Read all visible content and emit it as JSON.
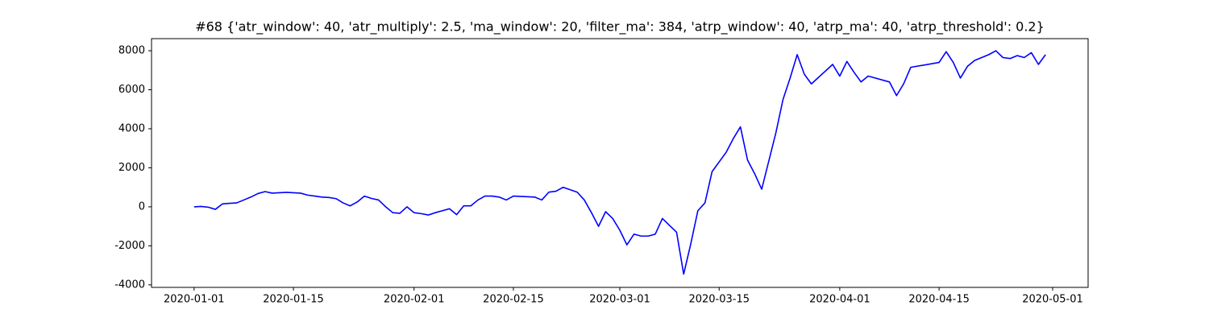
{
  "chart_data": {
    "type": "line",
    "title": "#68 {'atr_window': 40, 'atr_multiply': 2.5, 'ma_window': 20, 'filter_ma': 384, 'atrp_window': 40, 'atrp_ma': 40, 'atrp_threshold': 0.2}",
    "x": [
      "2020-01-01",
      "2020-01-02",
      "2020-01-03",
      "2020-01-04",
      "2020-01-05",
      "2020-01-06",
      "2020-01-07",
      "2020-01-08",
      "2020-01-09",
      "2020-01-10",
      "2020-01-11",
      "2020-01-12",
      "2020-01-13",
      "2020-01-14",
      "2020-01-15",
      "2020-01-16",
      "2020-01-17",
      "2020-01-18",
      "2020-01-19",
      "2020-01-20",
      "2020-01-21",
      "2020-01-22",
      "2020-01-23",
      "2020-01-24",
      "2020-01-25",
      "2020-01-26",
      "2020-01-27",
      "2020-01-28",
      "2020-01-29",
      "2020-01-30",
      "2020-01-31",
      "2020-02-01",
      "2020-02-02",
      "2020-02-03",
      "2020-02-04",
      "2020-02-05",
      "2020-02-06",
      "2020-02-07",
      "2020-02-08",
      "2020-02-09",
      "2020-02-10",
      "2020-02-11",
      "2020-02-12",
      "2020-02-13",
      "2020-02-14",
      "2020-02-15",
      "2020-02-18",
      "2020-02-19",
      "2020-02-20",
      "2020-02-21",
      "2020-02-22",
      "2020-02-24",
      "2020-02-25",
      "2020-02-26",
      "2020-02-27",
      "2020-02-28",
      "2020-02-29",
      "2020-03-01",
      "2020-03-02",
      "2020-03-03",
      "2020-03-04",
      "2020-03-05",
      "2020-03-06",
      "2020-03-07",
      "2020-03-09",
      "2020-03-10",
      "2020-03-11",
      "2020-03-12",
      "2020-03-13",
      "2020-03-14",
      "2020-03-16",
      "2020-03-17",
      "2020-03-18",
      "2020-03-19",
      "2020-03-20",
      "2020-03-21",
      "2020-03-23",
      "2020-03-24",
      "2020-03-25",
      "2020-03-26",
      "2020-03-27",
      "2020-03-28",
      "2020-03-31",
      "2020-04-01",
      "2020-04-02",
      "2020-04-03",
      "2020-04-04",
      "2020-04-05",
      "2020-04-08",
      "2020-04-09",
      "2020-04-10",
      "2020-04-11",
      "2020-04-15",
      "2020-04-16",
      "2020-04-17",
      "2020-04-18",
      "2020-04-19",
      "2020-04-20",
      "2020-04-22",
      "2020-04-23",
      "2020-04-24",
      "2020-04-25",
      "2020-04-26",
      "2020-04-27",
      "2020-04-28",
      "2020-04-29",
      "2020-04-30"
    ],
    "values": [
      0,
      20,
      -20,
      -130,
      150,
      180,
      200,
      350,
      500,
      680,
      780,
      700,
      720,
      740,
      720,
      700,
      600,
      550,
      500,
      480,
      420,
      200,
      50,
      250,
      550,
      430,
      350,
      0,
      -300,
      -330,
      0,
      -300,
      -350,
      -420,
      -300,
      -200,
      -100,
      -400,
      50,
      50,
      350,
      550,
      550,
      500,
      350,
      550,
      500,
      350,
      750,
      800,
      1000,
      750,
      350,
      -300,
      -1000,
      -250,
      -600,
      -1200,
      -1950,
      -1400,
      -1500,
      -1500,
      -1400,
      -600,
      -1300,
      -3450,
      -1900,
      -200,
      200,
      1800,
      2800,
      3500,
      4100,
      2400,
      1700,
      900,
      3800,
      5500,
      6600,
      7800,
      6800,
      6300,
      7300,
      6700,
      7450,
      6900,
      6400,
      6700,
      6400,
      5700,
      6300,
      7150,
      7400,
      7950,
      7400,
      6600,
      7200,
      7500,
      7800,
      8000,
      7650,
      7600,
      7750,
      7650,
      7900,
      7300,
      7800
    ],
    "color": "#0000ff",
    "xlim": [
      "2019-12-26",
      "2020-05-06"
    ],
    "xticks": [
      "2020-01-01",
      "2020-01-15",
      "2020-02-01",
      "2020-02-15",
      "2020-03-01",
      "2020-03-15",
      "2020-04-01",
      "2020-04-15",
      "2020-05-01"
    ],
    "ylim": [
      -4130,
      8620
    ],
    "yticks": [
      -4000,
      -2000,
      0,
      2000,
      4000,
      6000,
      8000
    ],
    "grid": false
  }
}
